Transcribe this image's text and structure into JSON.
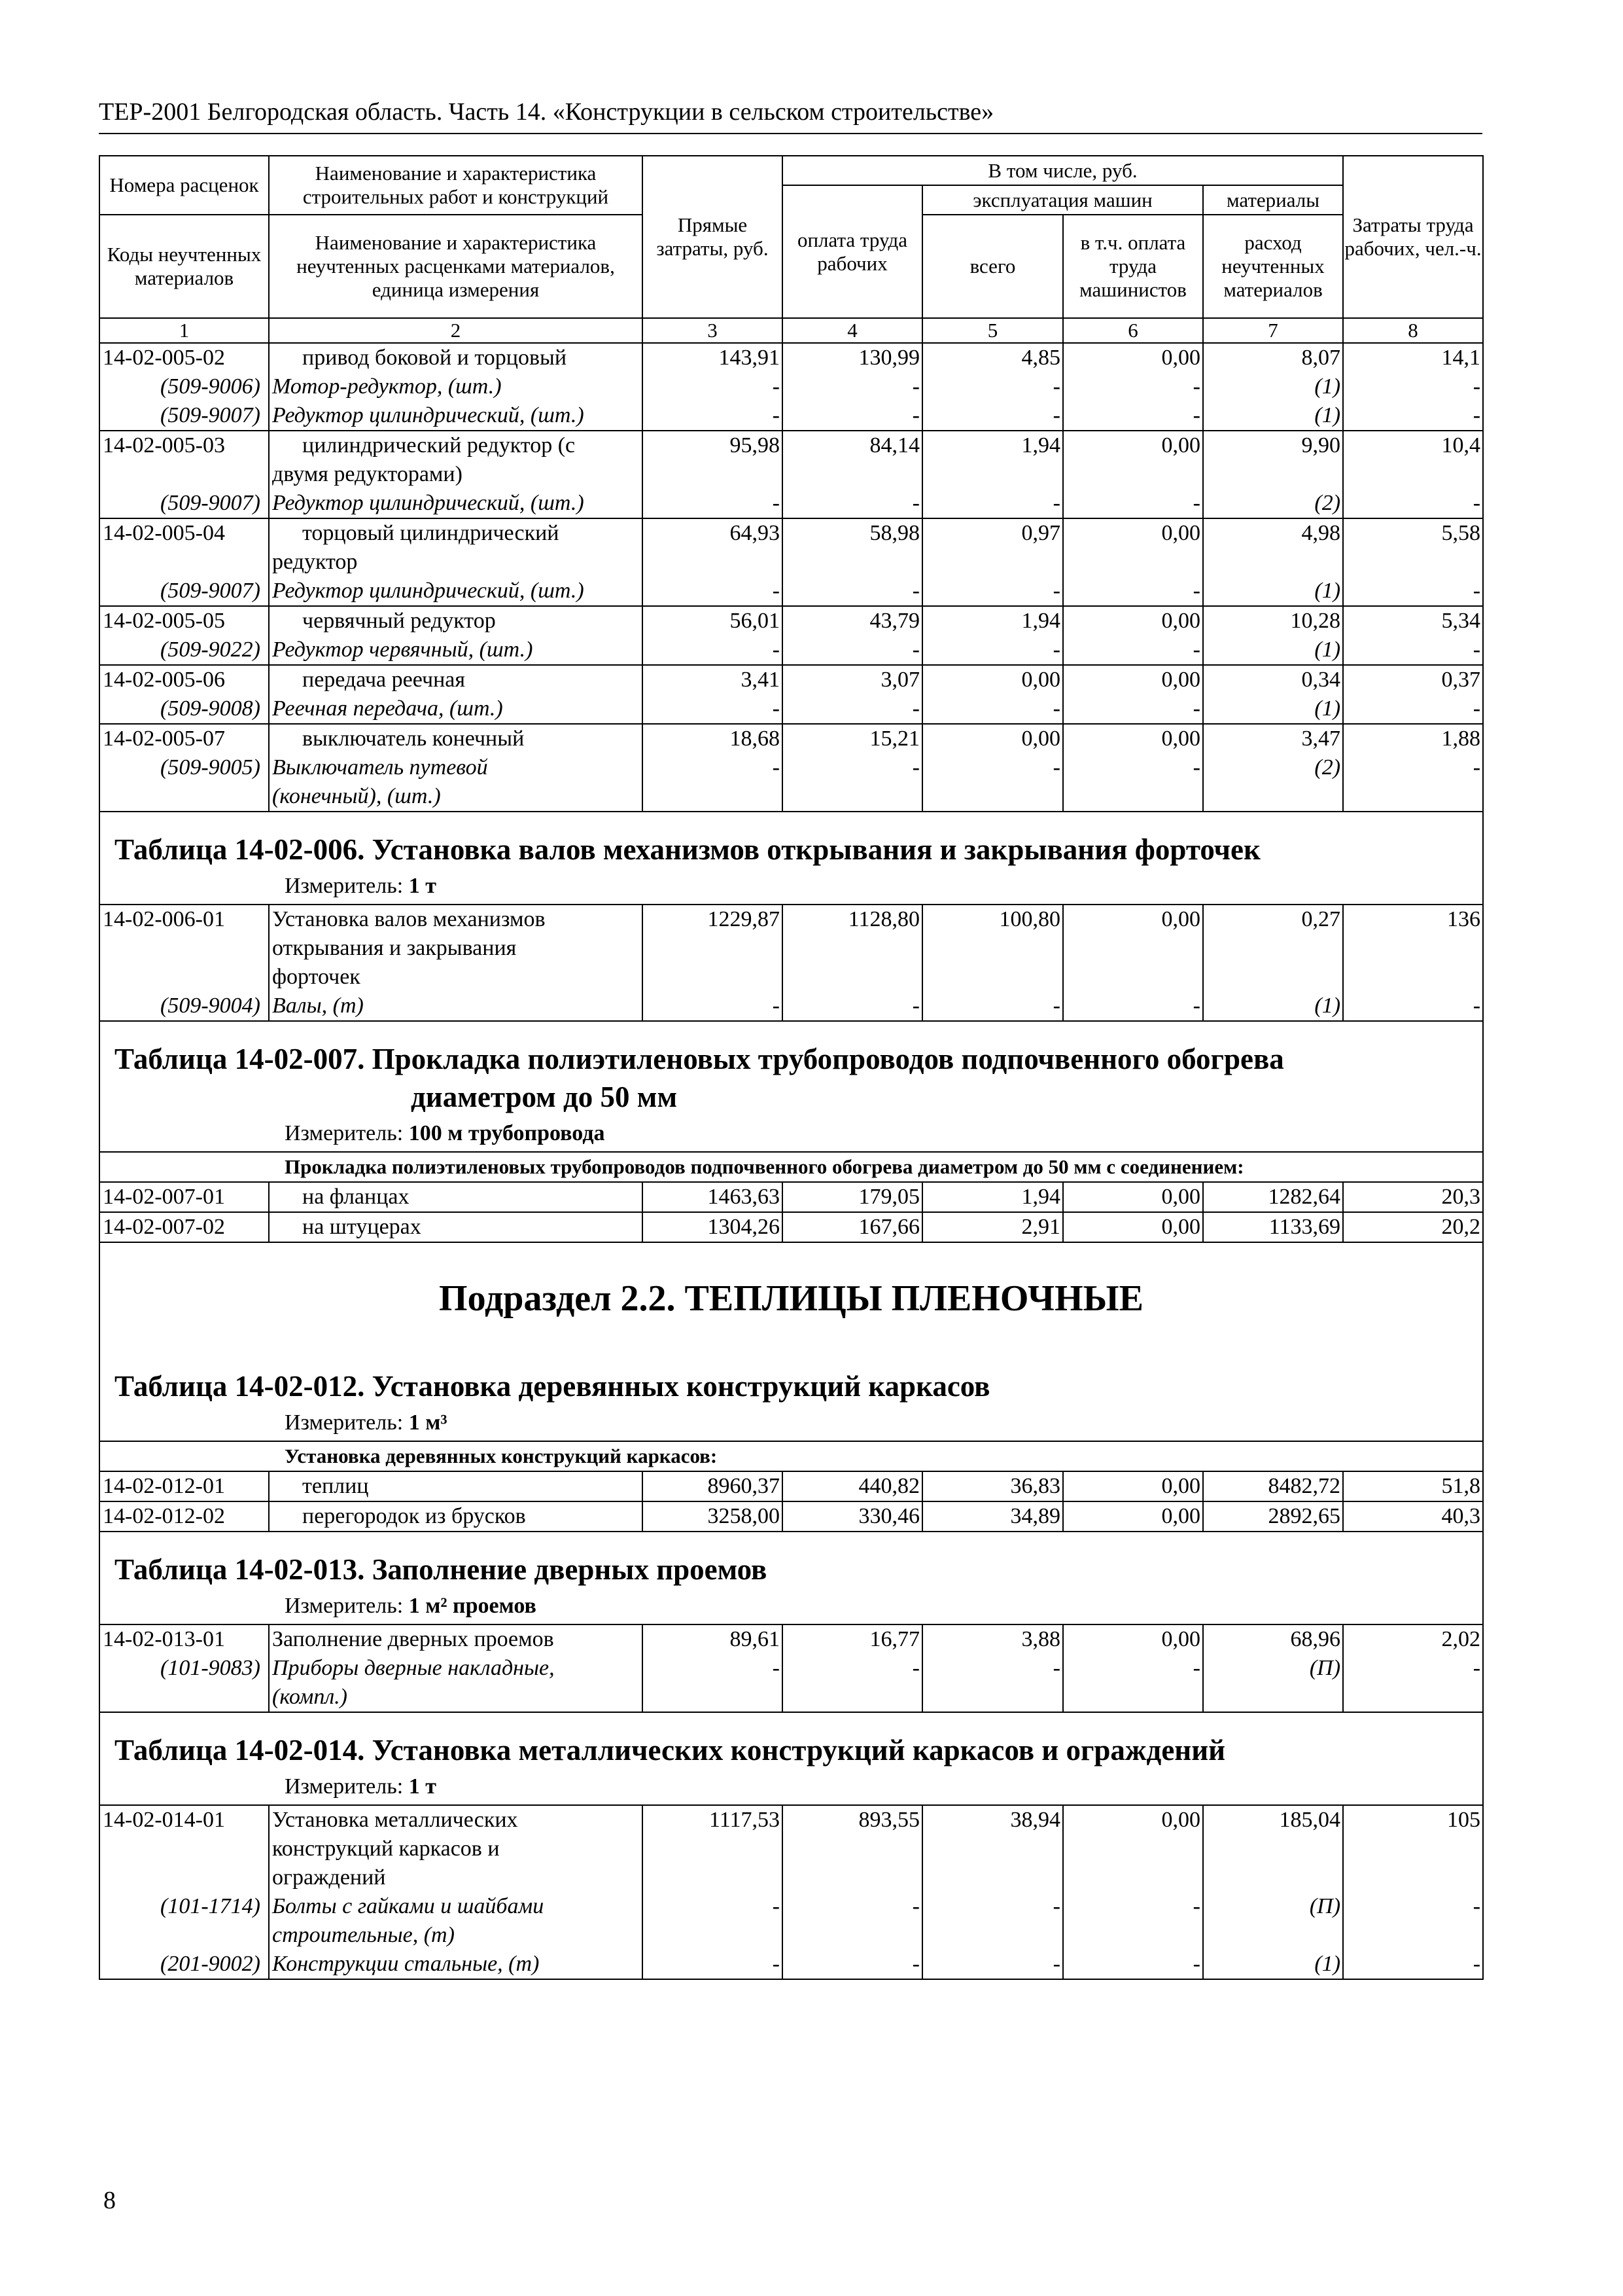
{
  "running_head": "ТЕР-2001 Белгородская область. Часть 14. «Конструкции в сельском строительстве»",
  "page_number": "8",
  "header": {
    "col1_top": "Номера расценок",
    "col2_top": "Наименование и характеристика строительных работ и конструкций",
    "col3": "Прямые затраты, руб.",
    "incl": "В том числе, руб.",
    "col4": "оплата труда рабочих",
    "machines": "эксплуатация машин",
    "materials": "материалы",
    "col8": "Затраты труда рабочих, чел.-ч.",
    "col1_bottom": "Коды неучтенных материалов",
    "col2_bottom": "Наименование и характеристика неучтенных расценками материалов, единица измерения",
    "col5": "всего",
    "col6": "в т.ч. оплата труда машинистов",
    "col7": "расход неучтенных материалов",
    "numbers": [
      "1",
      "2",
      "3",
      "4",
      "5",
      "6",
      "7",
      "8"
    ]
  },
  "blocks": [
    {
      "kind": "rate",
      "lines": [
        {
          "c": "14-02-005-02",
          "n": "привод боковой и торцовый",
          "ind": true,
          "v": [
            "143,91",
            "130,99",
            "4,85",
            "0,00",
            "8,07",
            "14,1"
          ]
        },
        {
          "c": "(509-9006)",
          "n": "Мотор-редуктор, (шт.)",
          "it": true,
          "v": [
            "-",
            "-",
            "-",
            "-",
            "(1)",
            "-"
          ]
        },
        {
          "c": "(509-9007)",
          "n": "Редуктор цилиндрический, (шт.)",
          "it": true,
          "v": [
            "-",
            "-",
            "-",
            "-",
            "(1)",
            "-"
          ]
        }
      ]
    },
    {
      "kind": "rate",
      "lines": [
        {
          "c": "14-02-005-03",
          "n": "цилиндрический редуктор (с",
          "ind": true,
          "v": [
            "95,98",
            "84,14",
            "1,94",
            "0,00",
            "9,90",
            "10,4"
          ]
        },
        {
          "c": "",
          "n": "двумя редукторами)",
          "v": [
            "",
            "",
            "",
            "",
            "",
            ""
          ]
        },
        {
          "c": "(509-9007)",
          "n": "Редуктор цилиндрический, (шт.)",
          "it": true,
          "v": [
            "-",
            "-",
            "-",
            "-",
            "(2)",
            "-"
          ]
        }
      ]
    },
    {
      "kind": "rate",
      "lines": [
        {
          "c": "14-02-005-04",
          "n": "торцовый цилиндрический",
          "ind": true,
          "v": [
            "64,93",
            "58,98",
            "0,97",
            "0,00",
            "4,98",
            "5,58"
          ]
        },
        {
          "c": "",
          "n": "редуктор",
          "v": [
            "",
            "",
            "",
            "",
            "",
            ""
          ]
        },
        {
          "c": "(509-9007)",
          "n": "Редуктор цилиндрический, (шт.)",
          "it": true,
          "v": [
            "-",
            "-",
            "-",
            "-",
            "(1)",
            "-"
          ]
        }
      ]
    },
    {
      "kind": "rate",
      "lines": [
        {
          "c": "14-02-005-05",
          "n": "червячный редуктор",
          "ind": true,
          "v": [
            "56,01",
            "43,79",
            "1,94",
            "0,00",
            "10,28",
            "5,34"
          ]
        },
        {
          "c": "(509-9022)",
          "n": "Редуктор червячный, (шт.)",
          "it": true,
          "v": [
            "-",
            "-",
            "-",
            "-",
            "(1)",
            "-"
          ]
        }
      ]
    },
    {
      "kind": "rate",
      "lines": [
        {
          "c": "14-02-005-06",
          "n": "передача реечная",
          "ind": true,
          "v": [
            "3,41",
            "3,07",
            "0,00",
            "0,00",
            "0,34",
            "0,37"
          ]
        },
        {
          "c": "(509-9008)",
          "n": "Реечная передача, (шт.)",
          "it": true,
          "v": [
            "-",
            "-",
            "-",
            "-",
            "(1)",
            "-"
          ]
        }
      ]
    },
    {
      "kind": "rate",
      "lines": [
        {
          "c": "14-02-005-07",
          "n": "выключатель конечный",
          "ind": true,
          "v": [
            "18,68",
            "15,21",
            "0,00",
            "0,00",
            "3,47",
            "1,88"
          ]
        },
        {
          "c": "(509-9005)",
          "n": "Выключатель путевой",
          "it": true,
          "v": [
            "-",
            "-",
            "-",
            "-",
            "(2)",
            "-"
          ]
        },
        {
          "c": "",
          "n": "(конечный), (шт.)",
          "it": true,
          "v": [
            "",
            "",
            "",
            "",
            "",
            ""
          ]
        }
      ]
    },
    {
      "kind": "table_title",
      "lines": [
        "Таблица 14-02-006. Установка валов механизмов открывания и закрывания форточек"
      ]
    },
    {
      "kind": "measure",
      "label": "Измеритель: ",
      "value": "1 т"
    },
    {
      "kind": "rate",
      "lines": [
        {
          "c": "14-02-006-01",
          "n": "Установка валов механизмов",
          "v": [
            "1229,87",
            "1128,80",
            "100,80",
            "0,00",
            "0,27",
            "136"
          ]
        },
        {
          "c": "",
          "n": "открывания и закрывания",
          "v": [
            "",
            "",
            "",
            "",
            "",
            ""
          ]
        },
        {
          "c": "",
          "n": "форточек",
          "v": [
            "",
            "",
            "",
            "",
            "",
            ""
          ]
        },
        {
          "c": "(509-9004)",
          "n": "Валы, (т)",
          "it": true,
          "v": [
            "-",
            "-",
            "-",
            "-",
            "(1)",
            "-"
          ]
        }
      ]
    },
    {
      "kind": "table_title",
      "lines": [
        "Таблица 14-02-007. Прокладка полиэтиленовых трубопроводов подпочвенного обогрева",
        "диаметром до 50 мм"
      ]
    },
    {
      "kind": "measure",
      "label": "Измеритель: ",
      "value": "100 м трубопровода"
    },
    {
      "kind": "group",
      "text": "Прокладка полиэтиленовых трубопроводов подпочвенного обогрева диаметром до 50 мм с соединением:"
    },
    {
      "kind": "rate",
      "lines": [
        {
          "c": "14-02-007-01",
          "n": "на фланцах",
          "ind": true,
          "v": [
            "1463,63",
            "179,05",
            "1,94",
            "0,00",
            "1282,64",
            "20,3"
          ]
        }
      ]
    },
    {
      "kind": "rate",
      "lines": [
        {
          "c": "14-02-007-02",
          "n": "на штуцерах",
          "ind": true,
          "v": [
            "1304,26",
            "167,66",
            "2,91",
            "0,00",
            "1133,69",
            "20,2"
          ]
        }
      ]
    },
    {
      "kind": "subsection",
      "text": "Подраздел 2.2. ТЕПЛИЦЫ ПЛЕНОЧНЫЕ"
    },
    {
      "kind": "table_title",
      "lines": [
        "Таблица 14-02-012. Установка деревянных конструкций каркасов"
      ]
    },
    {
      "kind": "measure",
      "label": "Измеритель: ",
      "value": "1 м³"
    },
    {
      "kind": "group",
      "text": "Установка деревянных конструкций каркасов:"
    },
    {
      "kind": "rate",
      "lines": [
        {
          "c": "14-02-012-01",
          "n": "теплиц",
          "ind": true,
          "v": [
            "8960,37",
            "440,82",
            "36,83",
            "0,00",
            "8482,72",
            "51,8"
          ]
        }
      ]
    },
    {
      "kind": "rate",
      "lines": [
        {
          "c": "14-02-012-02",
          "n": "перегородок из брусков",
          "ind": true,
          "v": [
            "3258,00",
            "330,46",
            "34,89",
            "0,00",
            "2892,65",
            "40,3"
          ]
        }
      ]
    },
    {
      "kind": "table_title",
      "lines": [
        "Таблица 14-02-013. Заполнение дверных проемов"
      ]
    },
    {
      "kind": "measure",
      "label": "Измеритель: ",
      "value": "1 м² проемов"
    },
    {
      "kind": "rate",
      "lines": [
        {
          "c": "14-02-013-01",
          "n": "Заполнение дверных проемов",
          "v": [
            "89,61",
            "16,77",
            "3,88",
            "0,00",
            "68,96",
            "2,02"
          ]
        },
        {
          "c": "(101-9083)",
          "n": "Приборы дверные накладные,",
          "it": true,
          "v": [
            "-",
            "-",
            "-",
            "-",
            "(П)",
            "-"
          ]
        },
        {
          "c": "",
          "n": "(компл.)",
          "it": true,
          "v": [
            "",
            "",
            "",
            "",
            "",
            ""
          ]
        }
      ]
    },
    {
      "kind": "table_title",
      "lines": [
        "Таблица 14-02-014. Установка металлических конструкций каркасов и ограждений"
      ]
    },
    {
      "kind": "measure",
      "label": "Измеритель: ",
      "value": "1 т"
    },
    {
      "kind": "rate",
      "lines": [
        {
          "c": "14-02-014-01",
          "n": "Установка металлических",
          "v": [
            "1117,53",
            "893,55",
            "38,94",
            "0,00",
            "185,04",
            "105"
          ]
        },
        {
          "c": "",
          "n": "конструкций каркасов и",
          "v": [
            "",
            "",
            "",
            "",
            "",
            ""
          ]
        },
        {
          "c": "",
          "n": "ограждений",
          "v": [
            "",
            "",
            "",
            "",
            "",
            ""
          ]
        },
        {
          "c": "(101-1714)",
          "n": "Болты с гайками и шайбами",
          "it": true,
          "v": [
            "-",
            "-",
            "-",
            "-",
            "(П)",
            "-"
          ]
        },
        {
          "c": "",
          "n": "строительные, (т)",
          "it": true,
          "v": [
            "",
            "",
            "",
            "",
            "",
            ""
          ]
        },
        {
          "c": "(201-9002)",
          "n": "Конструкции стальные, (т)",
          "it": true,
          "v": [
            "-",
            "-",
            "-",
            "-",
            "(1)",
            "-"
          ]
        }
      ]
    }
  ]
}
